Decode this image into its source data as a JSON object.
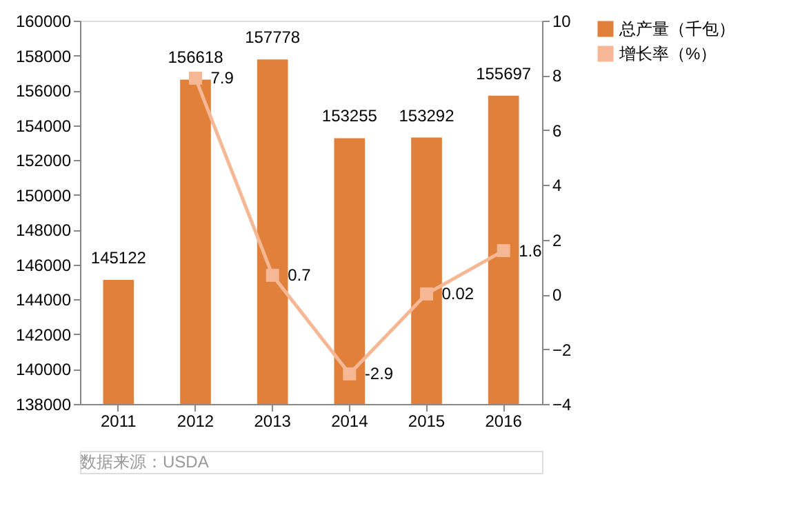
{
  "chart_data": {
    "type": "bar",
    "categories": [
      "2011",
      "2012",
      "2013",
      "2014",
      "2015",
      "2016"
    ],
    "series": [
      {
        "name": "总产量（千包）",
        "color": "#e0803a",
        "values": [
          145122,
          156618,
          157778,
          153255,
          153292,
          155697
        ]
      },
      {
        "name": "增长率（%）",
        "type": "line",
        "axis": "y2",
        "color": "#f6b894",
        "marker": "square",
        "values": [
          null,
          7.9,
          0.7,
          -2.9,
          0.02,
          1.6
        ]
      }
    ],
    "ylim": [
      138000,
      160000
    ],
    "yticks": [
      138000,
      140000,
      142000,
      144000,
      146000,
      148000,
      150000,
      152000,
      154000,
      156000,
      158000,
      160000
    ],
    "y2lim": [
      -4,
      10
    ],
    "y2ticks": [
      -4,
      -2,
      0,
      2,
      4,
      6,
      8,
      10
    ],
    "data_labels": true,
    "grid": false,
    "legend": "right",
    "annotations": [
      "数据来源：USDA"
    ]
  }
}
